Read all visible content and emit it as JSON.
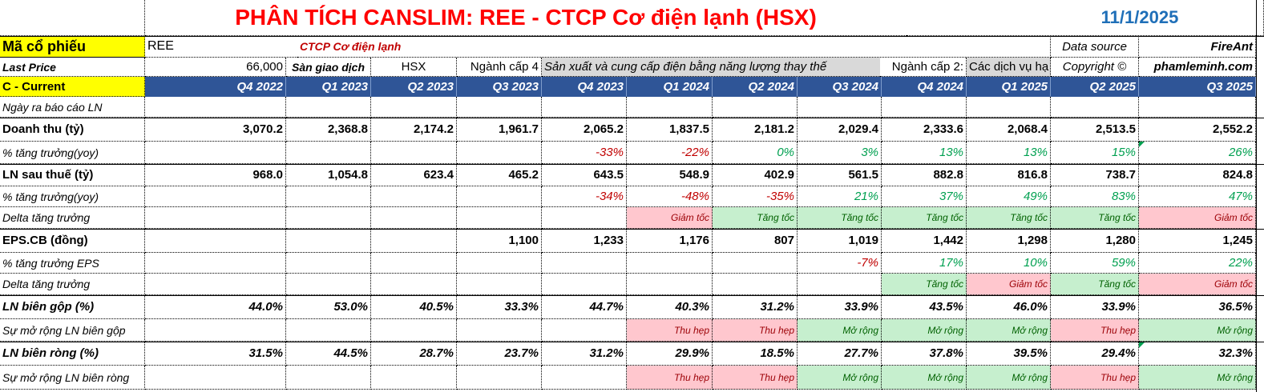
{
  "title": "PHÂN TÍCH CANSLIM: REE - CTCP Cơ điện lạnh (HSX)",
  "date": "11/1/2025",
  "info": {
    "ticker_label": "Mã cổ phiếu",
    "ticker": "REE",
    "company": "CTCP Cơ điện lạnh",
    "data_source_label": "Data source",
    "data_source": "FireAnt",
    "last_price_label": "Last Price",
    "last_price": "66,000",
    "exchange_label": "Sàn giao dịch",
    "exchange": "HSX",
    "industry4_label": "Ngành cấp 4",
    "industry4": "Sản xuất và cung cấp điện bằng năng lượng thay thế",
    "industry2_label": "Ngành cấp 2:",
    "industry2": "Các dịch vụ hạ",
    "copyright_label": "Copyright ©",
    "copyright": "phamleminh.com"
  },
  "section_label": "C - Current",
  "quarters": [
    "Q4 2022",
    "Q1 2023",
    "Q2 2023",
    "Q3 2023",
    "Q4 2023",
    "Q1 2024",
    "Q2 2024",
    "Q3 2024",
    "Q4 2024",
    "Q1 2025",
    "Q2 2025",
    "Q3 2025"
  ],
  "rows": [
    {
      "label": "Ngày ra báo cáo LN",
      "style": "i",
      "values": [
        "",
        "",
        "",
        "",
        "",
        "",
        "",
        "",
        "",
        "",
        "",
        ""
      ]
    },
    {
      "label": "Doanh thu (tỷ)",
      "style": "b",
      "values": [
        "3,070.2",
        "2,368.8",
        "2,174.2",
        "1,961.7",
        "2,065.2",
        "1,837.5",
        "2,181.2",
        "2,029.4",
        "2,333.6",
        "2,068.4",
        "2,513.5",
        "2,552.2"
      ]
    },
    {
      "label": "% tăng trưởng(yoy)",
      "style": "i",
      "values": [
        "",
        "",
        "",
        "",
        "-33%",
        "-22%",
        "0%",
        "3%",
        "13%",
        "13%",
        "15%",
        "26%"
      ],
      "colors": [
        "",
        "",
        "",
        "",
        "red",
        "red",
        "green",
        "green",
        "green",
        "green",
        "green",
        "green"
      ]
    },
    {
      "label": "LN sau thuế (tỷ)",
      "style": "b",
      "values": [
        "968.0",
        "1,054.8",
        "623.4",
        "465.2",
        "643.5",
        "548.9",
        "402.9",
        "561.5",
        "882.8",
        "816.8",
        "738.7",
        "824.8"
      ]
    },
    {
      "label": "% tăng trưởng(yoy)",
      "style": "i",
      "values": [
        "",
        "",
        "",
        "",
        "-34%",
        "-48%",
        "-35%",
        "21%",
        "37%",
        "49%",
        "83%",
        "47%"
      ],
      "colors": [
        "",
        "",
        "",
        "",
        "red",
        "red",
        "red",
        "green",
        "green",
        "green",
        "green",
        "green"
      ]
    },
    {
      "label": "Delta tăng trưởng",
      "style": "i",
      "values": [
        "",
        "",
        "",
        "",
        "",
        "Giảm tốc",
        "Tăng tốc",
        "Tăng tốc",
        "Tăng tốc",
        "Tăng tốc",
        "Tăng tốc",
        "Giảm tốc"
      ],
      "fills": [
        "",
        "",
        "",
        "",
        "",
        "bg-red",
        "bg-green",
        "bg-green",
        "bg-green",
        "bg-green",
        "bg-green",
        "bg-red"
      ]
    },
    {
      "label": "EPS.CB (đồng)",
      "style": "b",
      "values": [
        "",
        "",
        "",
        "1,100",
        "1,233",
        "1,176",
        "807",
        "1,019",
        "1,442",
        "1,298",
        "1,280",
        "1,245"
      ]
    },
    {
      "label": "% tăng trưởng EPS",
      "style": "i",
      "values": [
        "",
        "",
        "",
        "",
        "",
        "",
        "",
        "-7%",
        "17%",
        "10%",
        "59%",
        "22%"
      ],
      "colors": [
        "",
        "",
        "",
        "",
        "",
        "",
        "",
        "red",
        "green",
        "green",
        "green",
        "green"
      ]
    },
    {
      "label": "Delta tăng trưởng",
      "style": "i",
      "values": [
        "",
        "",
        "",
        "",
        "",
        "",
        "",
        "",
        "Tăng tốc",
        "Giảm tốc",
        "Tăng tốc",
        "Giảm tốc"
      ],
      "fills": [
        "",
        "",
        "",
        "",
        "",
        "",
        "",
        "",
        "bg-green",
        "bg-red",
        "bg-green",
        "bg-red"
      ]
    },
    {
      "label": "LN biên gộp (%)",
      "style": "bi",
      "values": [
        "44.0%",
        "53.0%",
        "40.5%",
        "33.3%",
        "44.7%",
        "40.3%",
        "31.2%",
        "33.9%",
        "43.5%",
        "46.0%",
        "33.9%",
        "36.5%"
      ]
    },
    {
      "label": "Sự mở rộng LN biên gộp",
      "style": "i",
      "values": [
        "",
        "",
        "",
        "",
        "",
        "Thu hẹp",
        "Thu hẹp",
        "Mở rộng",
        "Mở rộng",
        "Mở rộng",
        "Thu hẹp",
        "Mở rộng"
      ],
      "fills": [
        "",
        "",
        "",
        "",
        "",
        "bg-red",
        "bg-red",
        "bg-green",
        "bg-green",
        "bg-green",
        "bg-red",
        "bg-green"
      ]
    },
    {
      "label": "LN biên ròng (%)",
      "style": "bi",
      "values": [
        "31.5%",
        "44.5%",
        "28.7%",
        "23.7%",
        "31.2%",
        "29.9%",
        "18.5%",
        "27.7%",
        "37.8%",
        "39.5%",
        "29.4%",
        "32.3%"
      ]
    },
    {
      "label": "Sự mở rộng LN biên ròng",
      "style": "i",
      "values": [
        "",
        "",
        "",
        "",
        "",
        "Thu hẹp",
        "Thu hẹp",
        "Mở rộng",
        "Mở rộng",
        "Mở rộng",
        "Thu hẹp",
        "Mở rộng"
      ],
      "fills": [
        "",
        "",
        "",
        "",
        "",
        "bg-red",
        "bg-red",
        "bg-green",
        "bg-green",
        "bg-green",
        "bg-red",
        "bg-green"
      ]
    }
  ]
}
